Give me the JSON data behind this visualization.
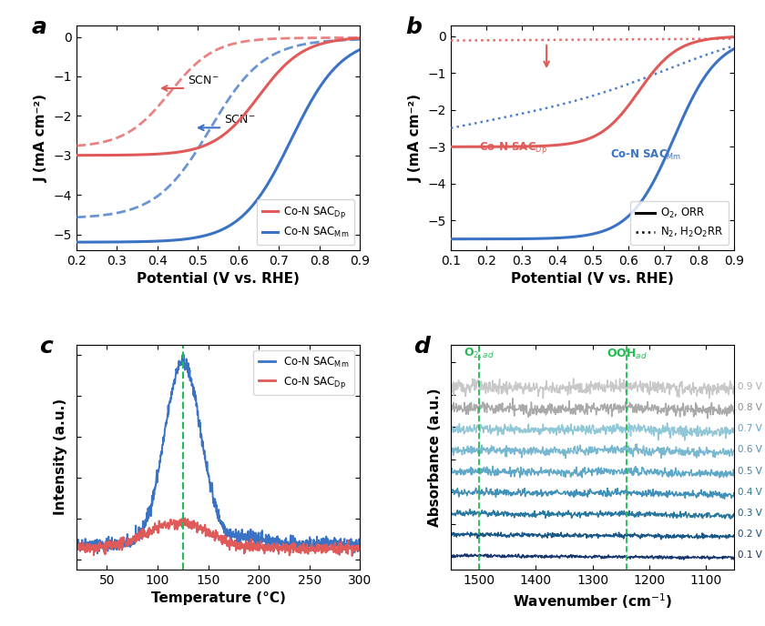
{
  "panel_a": {
    "xlim": [
      0.2,
      0.9
    ],
    "ylim": [
      -5.4,
      0.3
    ],
    "xlabel": "Potential (V vs. RHE)",
    "ylabel": "J (mA cm⁻²)",
    "xticks": [
      0.2,
      0.3,
      0.4,
      0.5,
      0.6,
      0.7,
      0.8,
      0.9
    ],
    "yticks": [
      0,
      -1,
      -2,
      -3,
      -4,
      -5
    ],
    "color_red": "#e05a5a",
    "color_blue": "#3a72c4",
    "color_red_light": "#e8a0a0",
    "color_blue_light": "#80b0e0"
  },
  "panel_b": {
    "xlim": [
      0.1,
      0.9
    ],
    "ylim": [
      -5.8,
      0.3
    ],
    "xlabel": "Potential (V vs. RHE)",
    "ylabel": "J (mA cm⁻²)",
    "xticks": [
      0.1,
      0.2,
      0.3,
      0.4,
      0.5,
      0.6,
      0.7,
      0.8,
      0.9
    ],
    "yticks": [
      0,
      -1,
      -2,
      -3,
      -4,
      -5
    ],
    "color_red": "#e05a5a",
    "color_blue": "#3a72c4"
  },
  "panel_c": {
    "xlim": [
      20,
      300
    ],
    "xlabel": "Temperature (°C)",
    "ylabel": "Intensity (a.u.)",
    "xticks": [
      50,
      100,
      150,
      200,
      250,
      300
    ],
    "color_blue": "#3a72c4",
    "color_red": "#e05a5a",
    "dashed_line_x": 125,
    "dashed_color": "#22bb55"
  },
  "panel_d": {
    "xlim": [
      1550,
      1050
    ],
    "xlabel": "Wavenumber (cm$^{-1}$)",
    "ylabel": "Absorbance (a.u.)",
    "xticks": [
      1500,
      1400,
      1300,
      1200,
      1100
    ],
    "dashed_line1_x": 1500,
    "dashed_line2_x": 1240,
    "dashed_color": "#22bb55",
    "label1": "O$_{2,ad}$",
    "label2": "OOH$_{ad}$",
    "voltages": [
      "0.9 V",
      "0.8 V",
      "0.7 V",
      "0.6 V",
      "0.5 V",
      "0.4 V",
      "0.3 V",
      "0.2 V",
      "0.1 V"
    ],
    "line_colors": [
      "#c8c8c8",
      "#aaaaaa",
      "#90c8d8",
      "#78b8d0",
      "#60a8c8",
      "#4090b8",
      "#2878a0",
      "#1a5888",
      "#1a3870"
    ],
    "label_colors": [
      "#aaaaaa",
      "#888888",
      "#60a0c0",
      "#5090b0",
      "#4080a0",
      "#307890",
      "#1a6080",
      "#1a4870",
      "#1a3060"
    ]
  },
  "background_color": "#ffffff",
  "panel_label_fontsize": 18,
  "axis_label_fontsize": 11,
  "tick_fontsize": 10
}
